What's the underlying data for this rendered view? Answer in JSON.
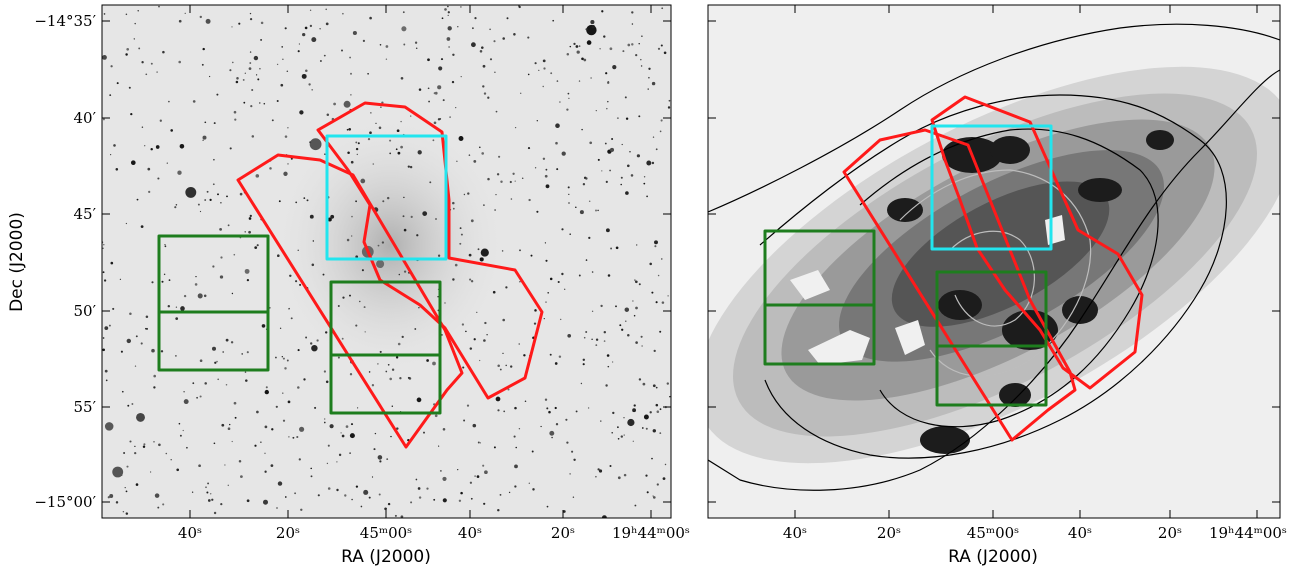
{
  "figure": {
    "left_panel": {
      "ylabel": "Dec (J2000)",
      "xlabel": "RA (J2000)",
      "dec_ticks": [
        "−14°35′",
        "40′",
        "45′",
        "50′",
        "55′",
        "−15°00′"
      ],
      "ra_ticks": [
        "40ˢ",
        "20ˢ",
        "45ᵐ00ˢ",
        "40ˢ",
        "20ˢ",
        "19ʰ44ᵐ00ˢ"
      ]
    },
    "right_panel": {
      "xlabel": "RA (J2000)",
      "ra_ticks": [
        "40ˢ",
        "20ˢ",
        "45ᵐ00ˢ",
        "40ˢ",
        "20ˢ",
        "19ʰ44ᵐ00ˢ"
      ]
    },
    "colors": {
      "red_region": "#ff1a1a",
      "cyan_box": "#22e5ee",
      "green_boxes": "#1e7d1e",
      "contour_dark": "#000000",
      "contour_light": "#bdbdbd"
    }
  }
}
